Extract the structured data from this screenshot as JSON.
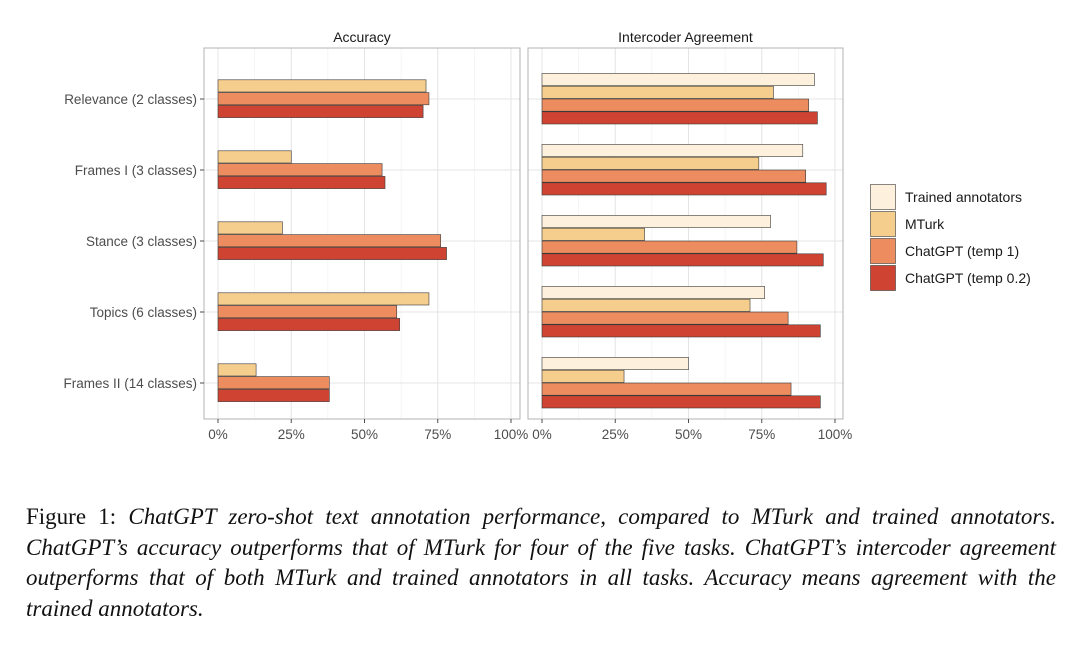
{
  "chart_data": {
    "type": "bar",
    "orientation": "horizontal",
    "categories": [
      "Relevance (2 classes)",
      "Frames I (3 classes)",
      "Stance (3 classes)",
      "Topics (6 classes)",
      "Frames II (14 classes)"
    ],
    "x_ticks": [
      "0%",
      "25%",
      "50%",
      "75%",
      "100%"
    ],
    "xlim": [
      0,
      1
    ],
    "grid": true,
    "legend_position": "right",
    "panels": [
      {
        "title": "Accuracy",
        "series": [
          {
            "name": "MTurk",
            "color": "#f5cd8c",
            "values": [
              0.71,
              0.25,
              0.22,
              0.72,
              0.13
            ]
          },
          {
            "name": "ChatGPT (temp 1)",
            "color": "#ec8c5f",
            "values": [
              0.72,
              0.56,
              0.76,
              0.61,
              0.38
            ]
          },
          {
            "name": "ChatGPT (temp 0.2)",
            "color": "#cf4332",
            "values": [
              0.7,
              0.57,
              0.78,
              0.62,
              0.38
            ]
          }
        ]
      },
      {
        "title": "Intercoder Agreement",
        "series": [
          {
            "name": "Trained annotators",
            "color": "#fdf1dd",
            "values": [
              0.93,
              0.89,
              0.78,
              0.76,
              0.5
            ]
          },
          {
            "name": "MTurk",
            "color": "#f5cd8c",
            "values": [
              0.79,
              0.74,
              0.35,
              0.71,
              0.28
            ]
          },
          {
            "name": "ChatGPT (temp 1)",
            "color": "#ec8c5f",
            "values": [
              0.91,
              0.9,
              0.87,
              0.84,
              0.85
            ]
          },
          {
            "name": "ChatGPT (temp 0.2)",
            "color": "#cf4332",
            "values": [
              0.94,
              0.97,
              0.96,
              0.95,
              0.95
            ]
          }
        ]
      }
    ],
    "legend": [
      {
        "name": "Trained annotators",
        "color": "#fdf1dd"
      },
      {
        "name": "MTurk",
        "color": "#f5cd8c"
      },
      {
        "name": "ChatGPT (temp 1)",
        "color": "#ec8c5f"
      },
      {
        "name": "ChatGPT (temp 0.2)",
        "color": "#cf4332"
      }
    ]
  },
  "caption": {
    "label": "Figure 1:",
    "text": "ChatGPT zero-shot text annotation performance, compared to MTurk and trained annotators. ChatGPT’s accuracy outperforms that of MTurk for four of the five tasks. ChatGPT’s intercoder agreement outperforms that of both MTurk and trained annotators in all tasks. Accuracy means agreement with the trained annotators."
  }
}
